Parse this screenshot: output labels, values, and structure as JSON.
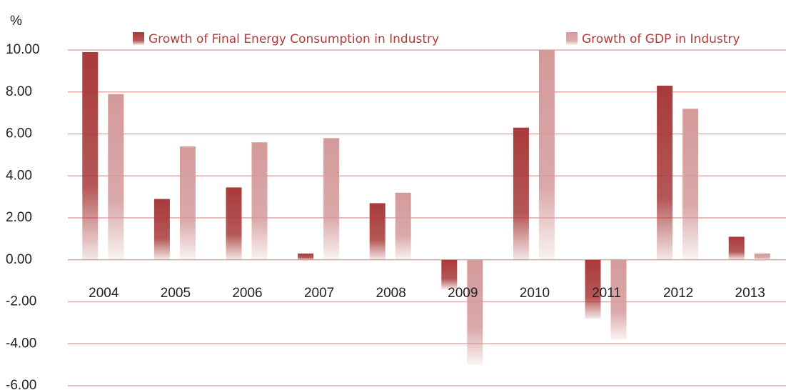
{
  "chart_data": {
    "type": "bar",
    "y_label": "%",
    "categories": [
      "2004",
      "2005",
      "2006",
      "2007",
      "2008",
      "2009",
      "2010",
      "2011",
      "2012",
      "2013"
    ],
    "series": [
      {
        "name": "Growth of Final Energy Consumption in Industry",
        "color": "#a83a3a",
        "values": [
          9.9,
          2.9,
          3.45,
          0.3,
          2.7,
          -1.4,
          6.3,
          -2.8,
          8.3,
          1.1
        ]
      },
      {
        "name": "Growth of GDP in Industry",
        "color": "#d49a9a",
        "values": [
          7.9,
          5.4,
          5.6,
          5.8,
          3.2,
          -5.0,
          10.0,
          -3.8,
          7.2,
          0.3
        ]
      }
    ],
    "ylim": [
      -6,
      10
    ],
    "yticks": [
      {
        "value": -6,
        "label": "-6.00"
      },
      {
        "value": -4,
        "label": "-4.00"
      },
      {
        "value": -2,
        "label": "-2.00"
      },
      {
        "value": 0,
        "label": "0.00"
      },
      {
        "value": 2,
        "label": "2.00"
      },
      {
        "value": 4,
        "label": "4.00"
      },
      {
        "value": 6,
        "label": "6.00"
      },
      {
        "value": 8,
        "label": "8.00"
      },
      {
        "value": 10,
        "label": "10.00"
      }
    ],
    "grid": true,
    "legend": "top"
  }
}
